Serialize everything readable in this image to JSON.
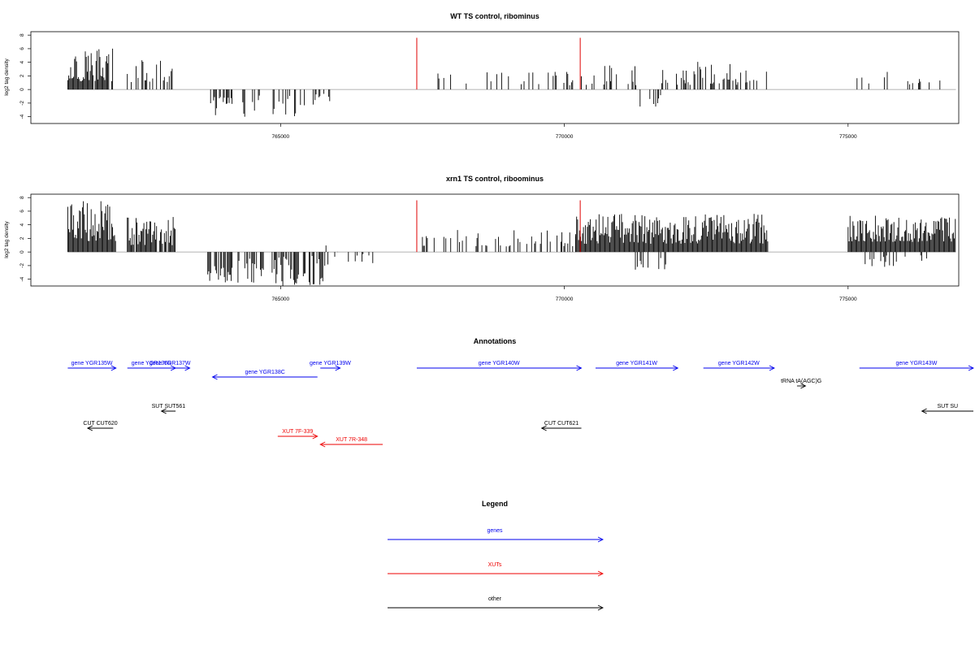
{
  "chart_data": [
    {
      "type": "bar",
      "title": "WT TS control, ribominus",
      "ylabel": "log2 tag density",
      "xlabel": "",
      "xlim": [
        760600,
        776950
      ],
      "ylim": [
        -5,
        8.5
      ],
      "yticks": [
        -4,
        -2,
        0,
        2,
        4,
        6,
        8
      ],
      "xticks": [
        765000,
        770000,
        775000
      ],
      "bar_color": "#000000",
      "highlight_color": "#e00000",
      "highlight_bars": [
        {
          "x": 767400,
          "y": 7.6
        },
        {
          "x": 770280,
          "y": 7.6
        }
      ],
      "density_segments": [
        {
          "start": 761250,
          "end": 762050,
          "density": 0.9,
          "ymin": 1.2,
          "ymax": 6.2
        },
        {
          "start": 762300,
          "end": 763150,
          "density": 0.55,
          "ymin": 1.0,
          "ymax": 4.6
        },
        {
          "start": 763750,
          "end": 764150,
          "density": 0.4,
          "ymin": -3.8,
          "ymax": -0.8
        },
        {
          "start": 764300,
          "end": 764650,
          "density": 0.3,
          "ymin": -4.6,
          "ymax": -0.8
        },
        {
          "start": 764850,
          "end": 765300,
          "density": 0.4,
          "ymin": -4.2,
          "ymax": -0.8
        },
        {
          "start": 765350,
          "end": 765900,
          "density": 0.3,
          "ymin": -2.5,
          "ymax": -0.6
        },
        {
          "start": 767550,
          "end": 768300,
          "density": 0.12,
          "ymin": 0.6,
          "ymax": 2.6
        },
        {
          "start": 768500,
          "end": 769600,
          "density": 0.18,
          "ymin": 0.6,
          "ymax": 2.8
        },
        {
          "start": 769700,
          "end": 770150,
          "density": 0.25,
          "ymin": 0.6,
          "ymax": 2.8
        },
        {
          "start": 770300,
          "end": 771300,
          "density": 0.3,
          "ymin": 0.6,
          "ymax": 3.6
        },
        {
          "start": 771300,
          "end": 771700,
          "density": 0.15,
          "ymin": -2.6,
          "ymax": -0.6
        },
        {
          "start": 771700,
          "end": 772300,
          "density": 0.3,
          "ymin": 0.6,
          "ymax": 3.0
        },
        {
          "start": 772300,
          "end": 773200,
          "density": 0.45,
          "ymin": 0.6,
          "ymax": 4.2
        },
        {
          "start": 773200,
          "end": 773600,
          "density": 0.25,
          "ymin": 0.6,
          "ymax": 3.0
        },
        {
          "start": 774900,
          "end": 776900,
          "density": 0.18,
          "ymin": 0.6,
          "ymax": 2.6
        }
      ]
    },
    {
      "type": "bar",
      "title": "xrn1 TS control, riboominus",
      "ylabel": "log2 tag density",
      "xlabel": "",
      "xlim": [
        760600,
        776950
      ],
      "ylim": [
        -5,
        8.5
      ],
      "yticks": [
        -4,
        -2,
        0,
        2,
        4,
        6,
        8
      ],
      "xticks": [
        765000,
        770000,
        775000
      ],
      "bar_color": "#000000",
      "highlight_color": "#e00000",
      "highlight_bars": [
        {
          "x": 767400,
          "y": 7.6
        },
        {
          "x": 770280,
          "y": 7.6
        }
      ],
      "density_segments": [
        {
          "start": 761250,
          "end": 762100,
          "density": 1.0,
          "ymin": 1.5,
          "ymax": 7.5
        },
        {
          "start": 762300,
          "end": 763150,
          "density": 0.9,
          "ymin": 1.0,
          "ymax": 5.2
        },
        {
          "start": 763700,
          "end": 764150,
          "density": 0.6,
          "ymin": -4.5,
          "ymax": -0.8
        },
        {
          "start": 764250,
          "end": 764750,
          "density": 0.5,
          "ymin": -4.5,
          "ymax": -0.8
        },
        {
          "start": 764850,
          "end": 765800,
          "density": 0.6,
          "ymin": -5.0,
          "ymax": -0.5
        },
        {
          "start": 765800,
          "end": 766800,
          "density": 0.25,
          "ymin": -2.0,
          "ymax": 1.0
        },
        {
          "start": 767500,
          "end": 769700,
          "density": 0.3,
          "ymin": 0.8,
          "ymax": 3.4
        },
        {
          "start": 769700,
          "end": 770200,
          "density": 0.35,
          "ymin": 0.8,
          "ymax": 3.0
        },
        {
          "start": 770200,
          "end": 773600,
          "density": 1.0,
          "ymin": 1.2,
          "ymax": 5.6
        },
        {
          "start": 771200,
          "end": 771800,
          "density": 0.3,
          "ymin": -2.6,
          "ymax": -0.6
        },
        {
          "start": 775000,
          "end": 776900,
          "density": 1.0,
          "ymin": 1.5,
          "ymax": 5.4
        },
        {
          "start": 775300,
          "end": 776700,
          "density": 0.2,
          "ymin": -2.2,
          "ymax": -0.5
        }
      ]
    }
  ],
  "annotations": {
    "title": "Annotations",
    "features": [
      {
        "label": "gene YGR135W",
        "type": "genes",
        "dir": "+",
        "start": 761250,
        "end": 762100,
        "row": 0
      },
      {
        "label": "gene YGR136R",
        "type": "genes",
        "dir": "+",
        "start": 762300,
        "end": 763150,
        "row": 0
      },
      {
        "label": "gene YGR137W",
        "type": "genes",
        "dir": "+",
        "start": 762700,
        "end": 763400,
        "row": 0
      },
      {
        "label": "gene YGR138C",
        "type": "genes",
        "dir": "-",
        "start": 763800,
        "end": 765650,
        "row": 1
      },
      {
        "label": "gene YGR139W",
        "type": "genes",
        "dir": "+",
        "start": 765700,
        "end": 766050,
        "row": 0
      },
      {
        "label": "gene YGR140W",
        "type": "genes",
        "dir": "+",
        "start": 767400,
        "end": 770300,
        "row": 0
      },
      {
        "label": "gene YGR141W",
        "type": "genes",
        "dir": "+",
        "start": 770550,
        "end": 772000,
        "row": 0
      },
      {
        "label": "gene YGR142W",
        "type": "genes",
        "dir": "+",
        "start": 772450,
        "end": 773700,
        "row": 0
      },
      {
        "label": "gene YGR143W",
        "type": "genes",
        "dir": "+",
        "start": 775200,
        "end": 777300,
        "row": 0
      },
      {
        "label": "tRNA tA(AGC)G",
        "type": "other",
        "dir": "+",
        "start": 774100,
        "end": 774250,
        "row": 2
      },
      {
        "label": "SUT SUT561",
        "type": "other",
        "dir": "-",
        "start": 762900,
        "end": 763150,
        "row": 4
      },
      {
        "label": "SUT SU",
        "type": "other",
        "dir": "-",
        "start": 776300,
        "end": 777300,
        "row": 4
      },
      {
        "label": "CUT CUT620",
        "type": "other",
        "dir": "-",
        "start": 761600,
        "end": 762050,
        "row": 5
      },
      {
        "label": "CUT CUT621",
        "type": "other",
        "dir": "-",
        "start": 769600,
        "end": 770300,
        "row": 5
      },
      {
        "label": "XUT 7F-339",
        "type": "XUTs",
        "dir": "+",
        "start": 764950,
        "end": 765650,
        "row": 6
      },
      {
        "label": "XUT 7R-348",
        "type": "XUTs",
        "dir": "-",
        "start": 765700,
        "end": 766800,
        "row": 7
      }
    ]
  },
  "legend": {
    "title": "Legend",
    "items": [
      {
        "label": "genes",
        "color": "#0000ee"
      },
      {
        "label": "XUTs",
        "color": "#ee0000"
      },
      {
        "label": "other",
        "color": "#000000"
      }
    ]
  },
  "colors": {
    "genes": "#0000ee",
    "XUTs": "#ee0000",
    "other": "#000000",
    "baseline": "#999999"
  }
}
